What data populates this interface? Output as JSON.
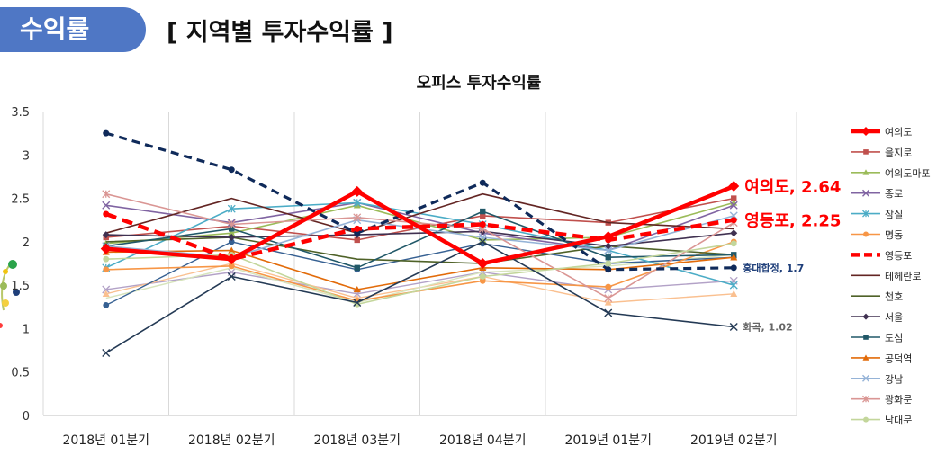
{
  "header": {
    "tag": "수익률",
    "title": "[ 지역별 투자수익률 ]"
  },
  "chart_data": {
    "type": "line",
    "title": "오피스 투자수익률",
    "categories": [
      "2018년 01분기",
      "2018년 02분기",
      "2018년 03분기",
      "2018년 04분기",
      "2019년 01분기",
      "2019년 02분기"
    ],
    "ylim": [
      0,
      3.5
    ],
    "yticks": [
      0,
      0.5,
      1,
      1.5,
      2,
      2.5,
      3,
      3.5
    ],
    "grid": "vertical",
    "legend_position": "right",
    "series": [
      {
        "name": "여의도",
        "values": [
          1.92,
          1.8,
          2.58,
          1.75,
          2.06,
          2.64
        ],
        "color": "#ff0000",
        "style": "thick",
        "marker": "diamond"
      },
      {
        "name": "을지로",
        "values": [
          2.05,
          2.18,
          2.02,
          2.3,
          2.22,
          2.5
        ],
        "color": "#c0504d",
        "style": "normal",
        "marker": "square"
      },
      {
        "name": "여의도마포",
        "values": [
          1.98,
          2.1,
          2.42,
          2.02,
          2.05,
          2.45
        ],
        "color": "#9bbb59",
        "style": "normal",
        "marker": "triangle"
      },
      {
        "name": "종로",
        "values": [
          2.42,
          2.22,
          2.45,
          2.1,
          1.9,
          2.42
        ],
        "color": "#8064a2",
        "style": "normal",
        "marker": "x"
      },
      {
        "name": "잠실",
        "values": [
          1.7,
          2.38,
          2.45,
          2.2,
          1.9,
          1.5
        ],
        "color": "#4bacc6",
        "style": "normal",
        "marker": "star"
      },
      {
        "name": "명동",
        "values": [
          1.68,
          1.72,
          1.32,
          1.55,
          1.48,
          2.0
        ],
        "color": "#f79646",
        "style": "normal",
        "marker": "circle"
      },
      {
        "name": "영등포",
        "values": [
          2.32,
          1.8,
          2.15,
          2.2,
          2.02,
          2.25
        ],
        "color": "#ff0000",
        "style": "thickdash",
        "marker": "none"
      },
      {
        "name": "테헤란로",
        "values": [
          2.1,
          2.5,
          2.1,
          2.55,
          2.22,
          2.15
        ],
        "color": "#632523",
        "style": "normal",
        "marker": "none"
      },
      {
        "name": "천호",
        "values": [
          2.0,
          2.05,
          1.8,
          1.75,
          1.95,
          1.85
        ],
        "color": "#4f6228",
        "style": "normal",
        "marker": "none"
      },
      {
        "name": "서울",
        "values": [
          2.08,
          2.05,
          2.08,
          2.12,
          1.95,
          2.1
        ],
        "color": "#403151",
        "style": "normal",
        "marker": "diamond"
      },
      {
        "name": "도심",
        "values": [
          1.95,
          2.15,
          1.7,
          2.35,
          1.82,
          1.85
        ],
        "color": "#215868",
        "style": "normal",
        "marker": "square"
      },
      {
        "name": "공덕역",
        "values": [
          1.88,
          1.9,
          1.45,
          1.7,
          1.68,
          1.82
        ],
        "color": "#e26b0a",
        "style": "normal",
        "marker": "triangle"
      },
      {
        "name": "강남",
        "values": [
          1.95,
          1.82,
          2.25,
          2.05,
          1.9,
          2.3
        ],
        "color": "#95b3d7",
        "style": "normal",
        "marker": "x"
      },
      {
        "name": "광화문",
        "values": [
          2.55,
          2.2,
          2.28,
          2.15,
          1.35,
          2.22
        ],
        "color": "#da9694",
        "style": "normal",
        "marker": "star"
      },
      {
        "name": "남대문",
        "values": [
          1.8,
          1.85,
          1.28,
          1.6,
          1.75,
          1.98
        ],
        "color": "#c3d69b",
        "style": "normal",
        "marker": "circle"
      },
      {
        "name": "홍대합정",
        "values": [
          3.25,
          2.83,
          2.1,
          2.68,
          1.68,
          1.7
        ],
        "color": "#0f2a5a",
        "style": "navydash",
        "marker": "none",
        "legend": false
      },
      {
        "name": "화곡",
        "values": [
          0.72,
          1.6,
          1.3,
          2.0,
          1.18,
          1.02
        ],
        "color": "#243a55",
        "style": "normal",
        "marker": "x",
        "legend": false
      },
      {
        "name": "",
        "values": [
          1.45,
          1.65,
          1.4,
          1.65,
          1.45,
          1.55
        ],
        "color": "#b3a2c7",
        "style": "thin",
        "marker": "x",
        "legend": false
      },
      {
        "name": "",
        "values": [
          1.4,
          1.75,
          1.35,
          1.6,
          1.3,
          1.4
        ],
        "color": "#fac090",
        "style": "thin",
        "marker": "triangle",
        "legend": false
      },
      {
        "name": "",
        "values": [
          1.35,
          1.7,
          1.3,
          1.65,
          1.72,
          1.85
        ],
        "color": "#d7e4bc",
        "style": "thin",
        "marker": "none",
        "legend": false
      },
      {
        "name": "",
        "values": [
          1.27,
          2.0,
          1.68,
          1.98,
          1.75,
          1.82
        ],
        "color": "#366092",
        "style": "thin",
        "marker": "circle",
        "legend": false
      }
    ],
    "annotations": [
      {
        "text": "여의도, 2.64",
        "color": "#ff0000",
        "size": "large",
        "series": "여의도"
      },
      {
        "text": "영등포, 2.25",
        "color": "#ff0000",
        "size": "large",
        "series": "영등포"
      },
      {
        "text": "홍대합정, 1.7",
        "color": "#1f3f7a",
        "size": "small",
        "series": "홍대합정"
      },
      {
        "text": "화곡, 1.02",
        "color": "#666666",
        "size": "small",
        "series": "화곡"
      }
    ]
  }
}
